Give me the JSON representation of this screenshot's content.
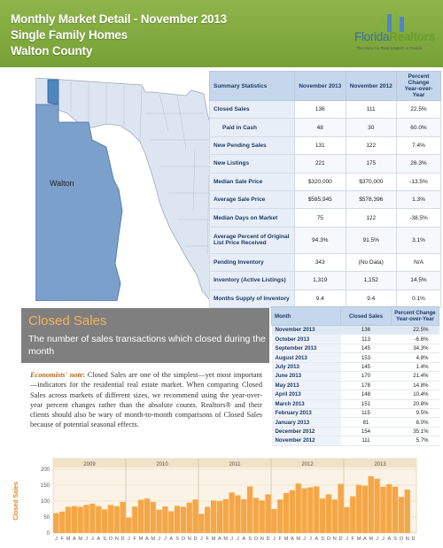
{
  "header": {
    "line1": "Monthly Market Detail - November 2013",
    "line2": "Single Family Homes",
    "line3": "Walton County"
  },
  "logo": {
    "name_part1": "Florida",
    "name_part2": "Realtors",
    "tagline": "The Voice for Real Estate® in Florida"
  },
  "map": {
    "county_label": "Walton"
  },
  "summary": {
    "headers": [
      "Summary Statistics",
      "November 2013",
      "November 2012",
      "Percent Change Year-over-Year"
    ],
    "rows": [
      {
        "label": "Closed Sales",
        "v2013": "136",
        "v2012": "111",
        "pct": "22.5%"
      },
      {
        "label": "Paid in Cash",
        "v2013": "48",
        "v2012": "30",
        "pct": "60.0%"
      },
      {
        "label": "New Pending Sales",
        "v2013": "131",
        "v2012": "122",
        "pct": "7.4%"
      },
      {
        "label": "New Listings",
        "v2013": "221",
        "v2012": "175",
        "pct": "26.3%"
      },
      {
        "label": "Median Sale Price",
        "v2013": "$320,000",
        "v2012": "$370,000",
        "pct": "-13.5%"
      },
      {
        "label": "Average Sale Price",
        "v2013": "$585,945",
        "v2012": "$578,396",
        "pct": "1.3%"
      },
      {
        "label": "Median Days on Market",
        "v2013": "75",
        "v2012": "122",
        "pct": "-38.5%"
      },
      {
        "label": "Average Percent of Original List Price Received",
        "v2013": "94.3%",
        "v2012": "91.5%",
        "pct": "3.1%"
      },
      {
        "label": "Pending Inventory",
        "v2013": "343",
        "v2012": "(No Data)",
        "pct": "N/A"
      },
      {
        "label": "Inventory (Active Listings)",
        "v2013": "1,319",
        "v2012": "1,152",
        "pct": "14.5%"
      },
      {
        "label": "Months Supply of Inventory",
        "v2013": "9.4",
        "v2012": "9.4",
        "pct": "0.1%"
      }
    ]
  },
  "closed_sales": {
    "title": "Closed Sales",
    "subtitle": "The number of sales transactions which closed during the month",
    "note_lead": "Economists' note",
    "note_body": ": Closed Sales are one of the simplest—yet most important—indicators for the residential real estate market. When comparing Closed Sales across markets of different sizes, we recommend using the year-over-year percent changes rather than the absolute counts. Realtors® and their clients should also be wary of month-to-month comparisons of Closed Sales because of potential seasonal effects."
  },
  "monthly": {
    "headers": [
      "Month",
      "Closed Sales",
      "Percent Change Year-over-Year"
    ],
    "rows": [
      {
        "month": "November 2013",
        "sales": "136",
        "pct": "22.5%"
      },
      {
        "month": "October 2013",
        "sales": "113",
        "pct": "-6.6%"
      },
      {
        "month": "September 2013",
        "sales": "145",
        "pct": "34.3%"
      },
      {
        "month": "August 2013",
        "sales": "153",
        "pct": "4.8%"
      },
      {
        "month": "July 2013",
        "sales": "145",
        "pct": "1.4%"
      },
      {
        "month": "June 2013",
        "sales": "170",
        "pct": "21.4%"
      },
      {
        "month": "May 2013",
        "sales": "178",
        "pct": "14.8%"
      },
      {
        "month": "April 2013",
        "sales": "148",
        "pct": "10.4%"
      },
      {
        "month": "March 2013",
        "sales": "151",
        "pct": "20.8%"
      },
      {
        "month": "February 2013",
        "sales": "115",
        "pct": "9.5%"
      },
      {
        "month": "January 2013",
        "sales": "81",
        "pct": "8.0%"
      },
      {
        "month": "December 2012",
        "sales": "154",
        "pct": "35.1%"
      },
      {
        "month": "November 2012",
        "sales": "111",
        "pct": "5.7%"
      }
    ]
  },
  "colors": {
    "header_green": "#7fa83c",
    "bar_orange": "#f5a646",
    "title_orange": "#f5b35a",
    "table_header_blue": "#c5d7ed"
  },
  "chart_data": {
    "type": "bar",
    "ylabel": "Closed Sales",
    "ylim": [
      0,
      200
    ],
    "yticks": [
      0,
      50,
      100,
      150,
      200
    ],
    "years": [
      "2009",
      "2010",
      "2011",
      "2012",
      "2013"
    ],
    "month_letters": [
      "J",
      "F",
      "M",
      "A",
      "M",
      "J",
      "J",
      "A",
      "S",
      "O",
      "N",
      "D"
    ],
    "values": [
      62,
      67,
      82,
      84,
      82,
      88,
      92,
      84,
      74,
      88,
      84,
      97,
      48,
      83,
      104,
      108,
      97,
      73,
      83,
      68,
      85,
      82,
      95,
      105,
      60,
      82,
      102,
      100,
      106,
      127,
      118,
      106,
      146,
      110,
      102,
      121,
      75,
      105,
      125,
      134,
      155,
      140,
      143,
      146,
      108,
      121,
      105,
      154,
      81,
      115,
      151,
      148,
      178,
      170,
      145,
      153,
      145,
      113,
      136
    ]
  }
}
